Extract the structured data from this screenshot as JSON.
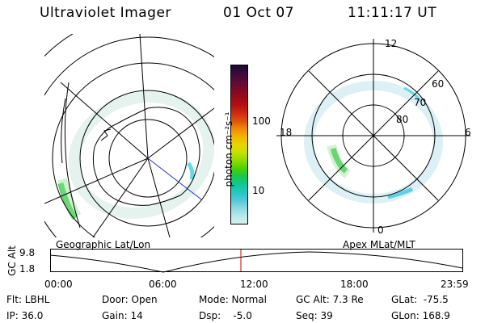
{
  "header": {
    "title": "Ultraviolet Imager",
    "date": "01 Oct 07",
    "time": "11:11:17 UT"
  },
  "colorbar": {
    "label": "photon cm⁻²s⁻¹",
    "ticks": [
      "100",
      "10"
    ],
    "colors": [
      "#1a0a2e",
      "#3a0a3a",
      "#5a0a3a",
      "#7a0a2a",
      "#9a0a1a",
      "#b40e14",
      "#cc2a10",
      "#e0500c",
      "#f08a08",
      "#f4b400",
      "#e8d400",
      "#c8e000",
      "#90dc00",
      "#50d000",
      "#18c848",
      "#10c890",
      "#20c8c0",
      "#50c8d8",
      "#8ad8e0",
      "#b8e6ea",
      "#d8f0f0"
    ]
  },
  "panel_left": {
    "caption": "Geographic Lat/Lon"
  },
  "panel_right": {
    "caption": "Apex MLat/MLT",
    "mlt_labels": {
      "top": "12",
      "left": "18",
      "right": "6",
      "bottom": "0"
    },
    "lat_labels": [
      "60",
      "70",
      "80"
    ]
  },
  "altitude_plot": {
    "ylabel": "GC Alt",
    "yticks": [
      "9.8",
      "1.8"
    ],
    "xticks": [
      "00:00",
      "06:00",
      "12:00",
      "18:00",
      "23:59"
    ],
    "marker_color": "#cc0000"
  },
  "info": {
    "flt": "Flt: LBHL",
    "ip": "IP: 36.0",
    "door": "Door: Open",
    "gain": "Gain: 14",
    "mode": "Mode: Normal",
    "dsp": "Dsp:    -5.0",
    "gc_alt": "GC Alt: 7.3 Re",
    "seq": "Seq: 39",
    "glat": "GLat:  -75.5",
    "glon": "GLon: 168.9"
  }
}
